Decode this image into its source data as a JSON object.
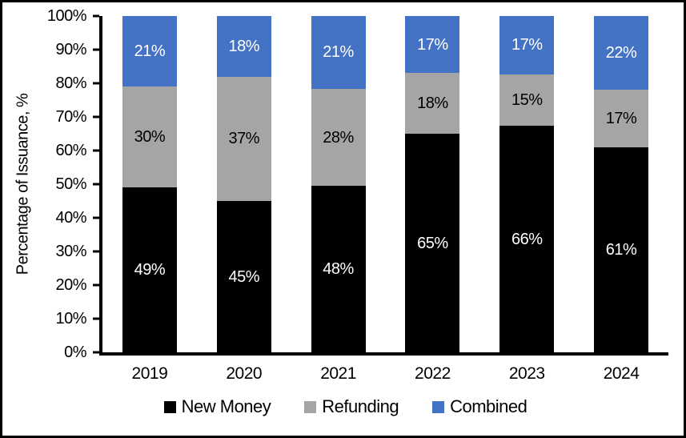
{
  "chart_data": {
    "type": "bar",
    "stacked": true,
    "title": "",
    "xlabel": "",
    "ylabel": "Percentage of Issuance, %",
    "categories": [
      "2019",
      "2020",
      "2021",
      "2022",
      "2023",
      "2024"
    ],
    "series": [
      {
        "name": "New Money",
        "color": "#000000",
        "label_color": "#ffffff",
        "values": [
          49,
          45,
          48,
          65,
          66,
          61
        ]
      },
      {
        "name": "Refunding",
        "color": "#a5a5a5",
        "label_color": "#000000",
        "values": [
          30,
          37,
          28,
          18,
          15,
          17
        ]
      },
      {
        "name": "Combined",
        "color": "#4472c4",
        "label_color": "#ffffff",
        "values": [
          21,
          18,
          21,
          17,
          17,
          22
        ]
      }
    ],
    "value_suffix": "%",
    "ylim": [
      0,
      100
    ],
    "y_ticks": [
      "0%",
      "10%",
      "20%",
      "30%",
      "40%",
      "50%",
      "60%",
      "70%",
      "80%",
      "90%",
      "100%"
    ],
    "grid": false,
    "legend_position": "bottom"
  }
}
